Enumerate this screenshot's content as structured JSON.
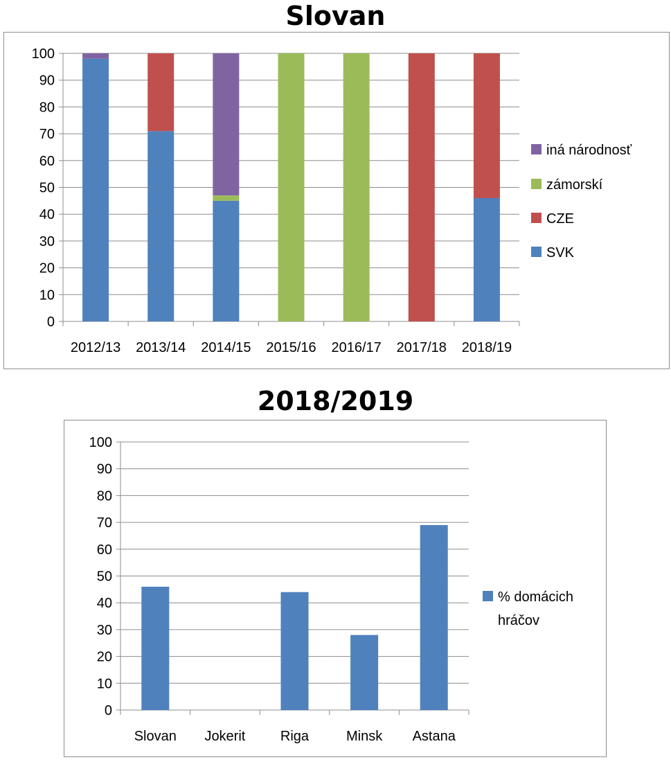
{
  "colors": {
    "svk": "#4f81bd",
    "cze": "#c0504d",
    "zamorski": "#9bbb59",
    "ina": "#8064a2",
    "grid": "#8c8c8c"
  },
  "chart_data": [
    {
      "type": "bar",
      "stacked": true,
      "title": "Slovan",
      "xlabel": "",
      "ylabel": "",
      "ylim": [
        0,
        100
      ],
      "yticks": [
        "0",
        "10",
        "20",
        "30",
        "40",
        "50",
        "60",
        "70",
        "80",
        "90",
        "100"
      ],
      "grid": true,
      "legend_position": "right",
      "categories": [
        "2012/13",
        "2013/14",
        "2014/15",
        "2015/16",
        "2016/17",
        "2017/18",
        "2018/19"
      ],
      "series": [
        {
          "name": "SVK",
          "color": "#4f81bd",
          "values": [
            98,
            71,
            45,
            0,
            0,
            0,
            46
          ]
        },
        {
          "name": "CZE",
          "color": "#c0504d",
          "values": [
            0,
            29,
            0,
            0,
            0,
            100,
            54
          ]
        },
        {
          "name": "zámorskí",
          "color": "#9bbb59",
          "values": [
            0,
            0,
            2,
            100,
            100,
            0,
            0
          ]
        },
        {
          "name": "iná národnosť",
          "color": "#8064a2",
          "values": [
            2,
            0,
            53,
            0,
            0,
            0,
            0
          ]
        }
      ],
      "legend_order": [
        "iná národnosť",
        "zámorskí",
        "CZE",
        "SVK"
      ]
    },
    {
      "type": "bar",
      "title": "2018/2019",
      "xlabel": "",
      "ylabel": "",
      "ylim": [
        0,
        100
      ],
      "yticks": [
        "0",
        "10",
        "20",
        "30",
        "40",
        "50",
        "60",
        "70",
        "80",
        "90",
        "100"
      ],
      "grid": true,
      "legend_position": "right",
      "categories": [
        "Slovan",
        "Jokerit",
        "Riga",
        "Minsk",
        "Astana"
      ],
      "series": [
        {
          "name": "% domácich hráčov",
          "color": "#4f81bd",
          "values": [
            46,
            0,
            44,
            28,
            69
          ]
        }
      ],
      "legend_lines": [
        "% domácich",
        "hráčov"
      ]
    }
  ]
}
